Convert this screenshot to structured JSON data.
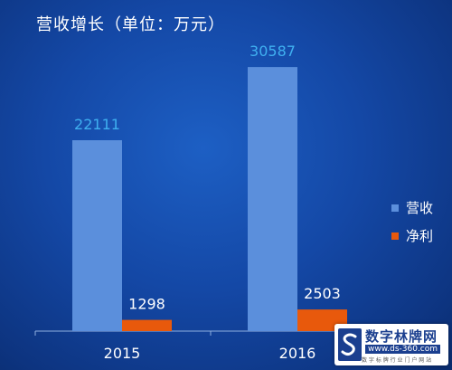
{
  "chart_data": {
    "type": "bar",
    "title": "营收增长（单位：万元）",
    "categories": [
      "2015",
      "2016"
    ],
    "series": [
      {
        "name": "营收",
        "values": [
          22111,
          30587
        ],
        "color": "#5b8fdc",
        "label_color": "#3fb0f0"
      },
      {
        "name": "净利",
        "values": [
          1298,
          2503
        ],
        "color": "#e8590c",
        "label_color": "#ffffff"
      }
    ],
    "ylim": [
      0,
      35000
    ],
    "grid": false,
    "legend_position": "right"
  },
  "logo": {
    "name": "数字林牌网",
    "url": "www.ds-360.com",
    "slogan": "数 字 标 牌 行 业 门 户 网 站"
  }
}
